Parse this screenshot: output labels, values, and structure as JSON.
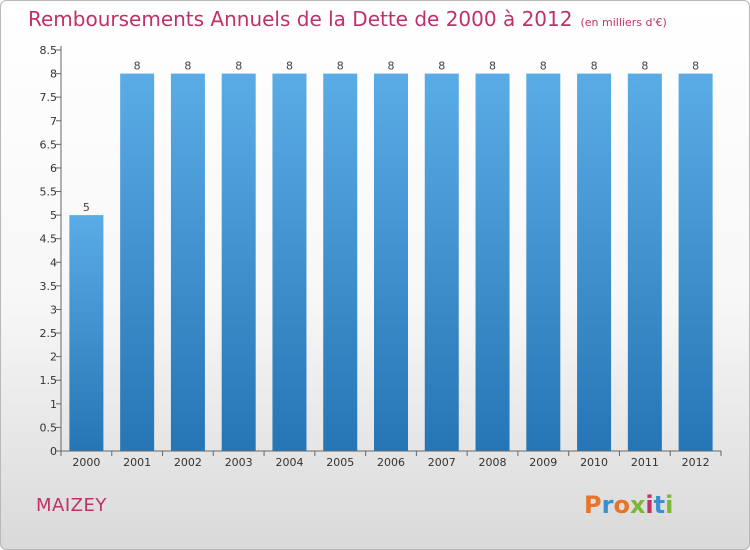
{
  "header": {
    "title": "Remboursements Annuels de la Dette de 2000 à 2012",
    "subtitle": "(en milliers d'€)"
  },
  "footer": {
    "commune": "MAIZEY",
    "logo_text": "Proxiti",
    "logo_colors": [
      "#e8742a",
      "#3a8fd0",
      "#e8742a",
      "#7cb835",
      "#c0306a",
      "#3a8fd0",
      "#7cb835"
    ]
  },
  "chart_data": {
    "type": "bar",
    "categories": [
      "2000",
      "2001",
      "2002",
      "2003",
      "2004",
      "2005",
      "2006",
      "2007",
      "2008",
      "2009",
      "2010",
      "2011",
      "2012"
    ],
    "values": [
      5,
      8,
      8,
      8,
      8,
      8,
      8,
      8,
      8,
      8,
      8,
      8,
      8
    ],
    "data_labels": [
      "5",
      "8",
      "8",
      "8",
      "8",
      "8",
      "8",
      "8",
      "8",
      "8",
      "8",
      "8",
      "8"
    ],
    "title": "Remboursements Annuels de la Dette de 2000 à 2012",
    "xlabel": "",
    "ylabel": "",
    "ylim": [
      0,
      8.5
    ],
    "yticks": [
      0,
      0.5,
      1,
      1.5,
      2,
      2.5,
      3,
      3.5,
      4,
      4.5,
      5,
      5.5,
      6,
      6.5,
      7,
      7.5,
      8,
      8.5
    ],
    "ytick_labels": [
      "0",
      "0.5",
      "1",
      "1.5",
      "2",
      "2.5",
      "3",
      "3.5",
      "4",
      "4.5",
      "5",
      "5.5",
      "6",
      "6.5",
      "7",
      "7.5",
      "8",
      "8.5"
    ],
    "grid": false,
    "bar_color_top": "#5aace6",
    "bar_color_bottom": "#2675b5"
  }
}
